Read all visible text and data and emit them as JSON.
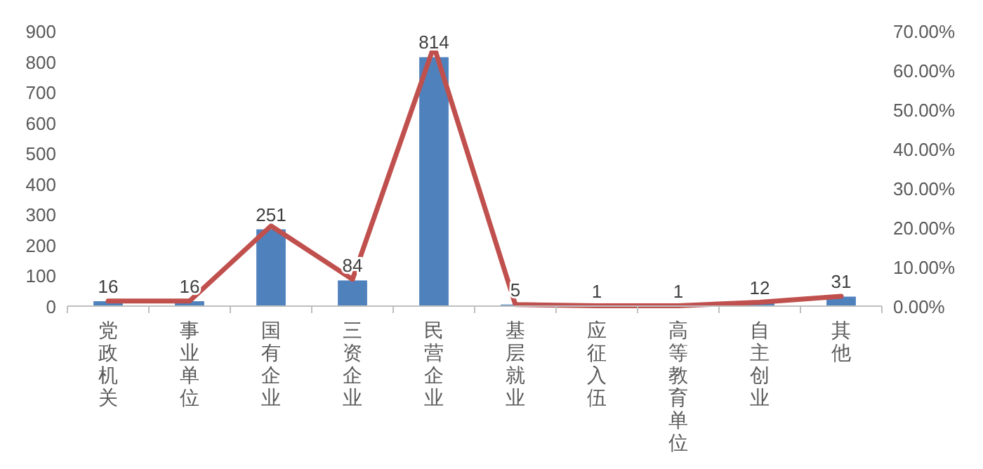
{
  "chart_data": {
    "type": "bar",
    "categories": [
      "党政机关",
      "事业单位",
      "国有企业",
      "三资企业",
      "民营企业",
      "基层就业",
      "应征入伍",
      "高等教育单位",
      "自主创业",
      "其他"
    ],
    "series": [
      {
        "color": "#4f81bd",
        "values": [
          16,
          16,
          251,
          84,
          814,
          5,
          1,
          1,
          12,
          31
        ],
        "value_labels": [
          "16",
          "16",
          "251",
          "84",
          "814",
          "5",
          "1",
          "1",
          "12",
          "31"
        ]
      },
      {
        "type": "line",
        "axis": "y2",
        "color": "#c0504d",
        "values": [
          1.3,
          1.3,
          20.4,
          6.8,
          66.1,
          0.4,
          0.1,
          0.1,
          1.0,
          2.5
        ]
      }
    ],
    "ylim": [
      0,
      900
    ],
    "yticks": [
      0,
      100,
      200,
      300,
      400,
      500,
      600,
      700,
      800,
      900
    ],
    "y2lim": [
      0,
      70
    ],
    "y2ticks": [
      {
        "value": 0,
        "label": "0.00%"
      },
      {
        "value": 10,
        "label": "10.00%"
      },
      {
        "value": 20,
        "label": "20.00%"
      },
      {
        "value": 30,
        "label": "30.00%"
      },
      {
        "value": 40,
        "label": "40.00%"
      },
      {
        "value": 50,
        "label": "50.00%"
      },
      {
        "value": 60,
        "label": "60.00%"
      },
      {
        "value": 70,
        "label": "70.00%"
      }
    ],
    "grid": false,
    "line_style": "solid"
  }
}
